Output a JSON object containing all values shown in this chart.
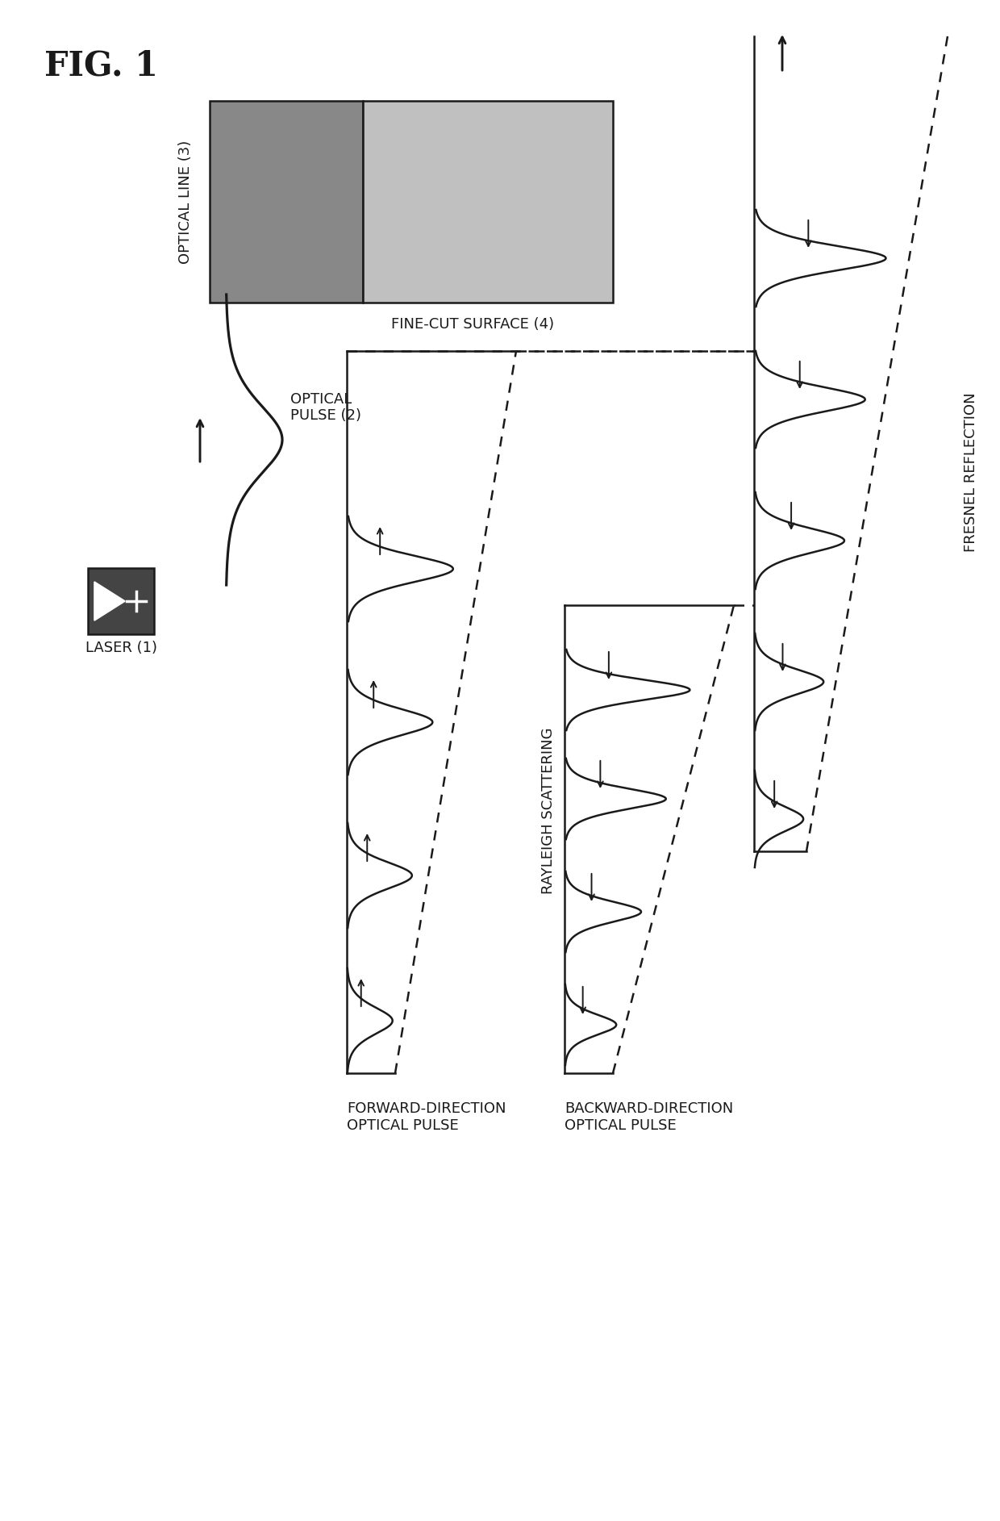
{
  "bg_color": "#ffffff",
  "line_color": "#1a1a1a",
  "gray_light": "#c0c0c0",
  "gray_dark": "#888888",
  "laser_bg": "#444444",
  "title": "FIG. 1",
  "optical_line_label": "OPTICAL LINE (3)",
  "fine_cut_label": "FINE-CUT SURFACE (4)",
  "laser_label": "LASER (1)",
  "pulse_label": "OPTICAL\nPULSE (2)",
  "forward_label": "FORWARD-DIRECTION\nOPTICAL PULSE",
  "backward_label": "BACKWARD-DIRECTION\nOPTICAL PULSE",
  "rayleigh_label": "RAYLEIGH SCATTERING",
  "fresnel_label": "FRESNEL REFLECTION",
  "lw": 1.8,
  "label_fs": 13,
  "fig_width": 12.4,
  "fig_height": 18.85,
  "dpi": 100
}
